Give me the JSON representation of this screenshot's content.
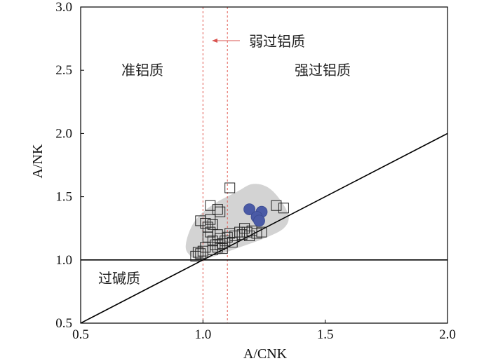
{
  "chart_data": {
    "type": "scatter",
    "xlabel": "A/CNK",
    "ylabel": "A/NK",
    "xlim": [
      0.5,
      2.0
    ],
    "ylim": [
      0.5,
      3.0
    ],
    "xticks": [
      "0.5",
      "1.0",
      "1.5",
      "2.0"
    ],
    "yticks": [
      "0.5",
      "1.0",
      "1.5",
      "2.0",
      "2.5",
      "3.0"
    ],
    "grid": false,
    "region_labels": {
      "metaluminous": "准铝质",
      "strongly_peraluminous": "强过铝质",
      "weakly_peraluminous": "弱过铝质",
      "peralkaline": "过碱质"
    },
    "reference_lines": {
      "horizontal_y": 1.0,
      "diagonal": [
        [
          0.5,
          0.5
        ],
        [
          2.0,
          2.0
        ]
      ],
      "dashed_x": [
        1.0,
        1.1
      ]
    },
    "field_envelope": [
      [
        0.98,
        1.0
      ],
      [
        0.94,
        1.05
      ],
      [
        0.93,
        1.12
      ],
      [
        0.95,
        1.25
      ],
      [
        0.99,
        1.36
      ],
      [
        1.06,
        1.46
      ],
      [
        1.14,
        1.54
      ],
      [
        1.2,
        1.6
      ],
      [
        1.26,
        1.58
      ],
      [
        1.31,
        1.49
      ],
      [
        1.35,
        1.35
      ],
      [
        1.33,
        1.25
      ],
      [
        1.25,
        1.17
      ],
      [
        1.15,
        1.1
      ],
      [
        1.05,
        1.03
      ]
    ],
    "series": [
      {
        "marker": "open-square",
        "points": [
          [
            1.11,
            1.57
          ],
          [
            1.03,
            1.43
          ],
          [
            1.06,
            1.4
          ],
          [
            1.07,
            1.38
          ],
          [
            1.3,
            1.43
          ],
          [
            1.33,
            1.41
          ],
          [
            0.99,
            1.31
          ],
          [
            1.01,
            1.29
          ],
          [
            1.03,
            1.32
          ],
          [
            1.02,
            1.26
          ],
          [
            1.04,
            1.28
          ],
          [
            1.03,
            1.22
          ],
          [
            1.02,
            1.18
          ],
          [
            1.04,
            1.15
          ],
          [
            1.06,
            1.2
          ],
          [
            1.07,
            1.17
          ],
          [
            1.08,
            1.13
          ],
          [
            1.05,
            1.12
          ],
          [
            1.06,
            1.1
          ],
          [
            1.09,
            1.15
          ],
          [
            1.1,
            1.18
          ],
          [
            1.11,
            1.21
          ],
          [
            1.12,
            1.14
          ],
          [
            1.13,
            1.19
          ],
          [
            1.15,
            1.22
          ],
          [
            1.16,
            1.2
          ],
          [
            1.17,
            1.25
          ],
          [
            1.18,
            1.22
          ],
          [
            1.19,
            1.19
          ],
          [
            1.2,
            1.23
          ],
          [
            1.22,
            1.21
          ],
          [
            1.24,
            1.22
          ],
          [
            1.08,
            1.09
          ],
          [
            1.07,
            1.12
          ],
          [
            0.99,
            1.05
          ],
          [
            0.97,
            1.03
          ],
          [
            0.98,
            1.06
          ],
          [
            1.0,
            1.07
          ],
          [
            1.01,
            1.1
          ],
          [
            1.04,
            1.08
          ]
        ]
      },
      {
        "marker": "filled-circle",
        "color": "#4a5aa6",
        "points": [
          [
            1.19,
            1.4
          ],
          [
            1.24,
            1.38
          ],
          [
            1.22,
            1.34
          ],
          [
            1.23,
            1.31
          ]
        ]
      }
    ]
  }
}
